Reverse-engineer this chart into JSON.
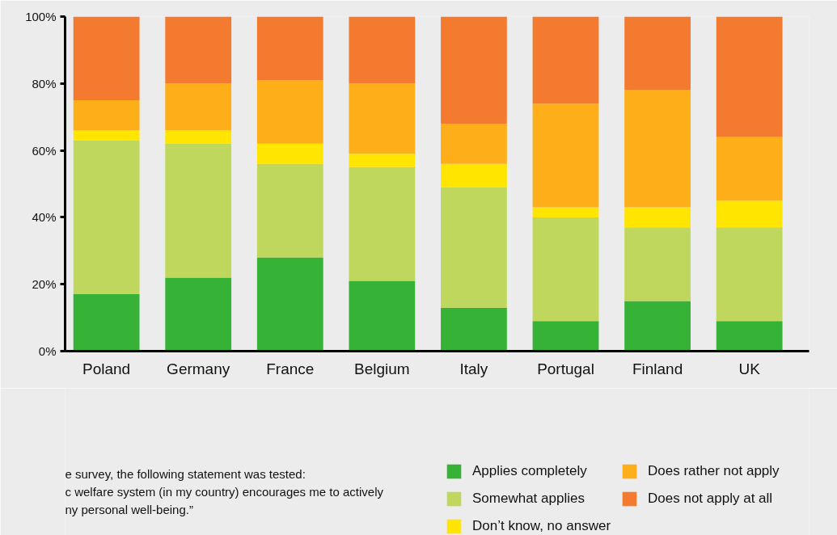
{
  "chart_data": {
    "type": "bar",
    "stacked": true,
    "categories": [
      "Poland",
      "Germany",
      "France",
      "Belgium",
      "Italy",
      "Portugal",
      "Finland",
      "UK"
    ],
    "series": [
      {
        "name": "Applies completely",
        "color": "#36b236",
        "values": [
          17,
          22,
          28,
          21,
          13,
          9,
          15,
          9
        ]
      },
      {
        "name": "Somewhat applies",
        "color": "#bfd75c",
        "values": [
          46,
          40,
          28,
          34,
          36,
          31,
          22,
          28
        ]
      },
      {
        "name": "Don’t know, no answer",
        "color": "#ffe500",
        "values": [
          3,
          4,
          6,
          4,
          7,
          3,
          6,
          8
        ]
      },
      {
        "name": "Does rather not apply",
        "color": "#fdae19",
        "values": [
          9,
          14,
          19,
          21,
          12,
          31,
          35,
          19
        ]
      },
      {
        "name": "Does not apply at all",
        "color": "#f47a30",
        "values": [
          25,
          20,
          19,
          20,
          32,
          26,
          22,
          36
        ]
      }
    ],
    "ylim": [
      0,
      100
    ],
    "yticks": [
      {
        "value": 0,
        "label": "0%"
      },
      {
        "value": 20,
        "label": "20%"
      },
      {
        "value": 40,
        "label": "40%"
      },
      {
        "value": 60,
        "label": "60%"
      },
      {
        "value": 80,
        "label": "80%"
      },
      {
        "value": 100,
        "label": "100%"
      }
    ],
    "grid": false,
    "legend": "bottom right",
    "annotations": [
      "e survey, the following statement was tested:",
      "c welfare system (in my country) encourages me to actively",
      "ny personal well-being.”"
    ]
  }
}
